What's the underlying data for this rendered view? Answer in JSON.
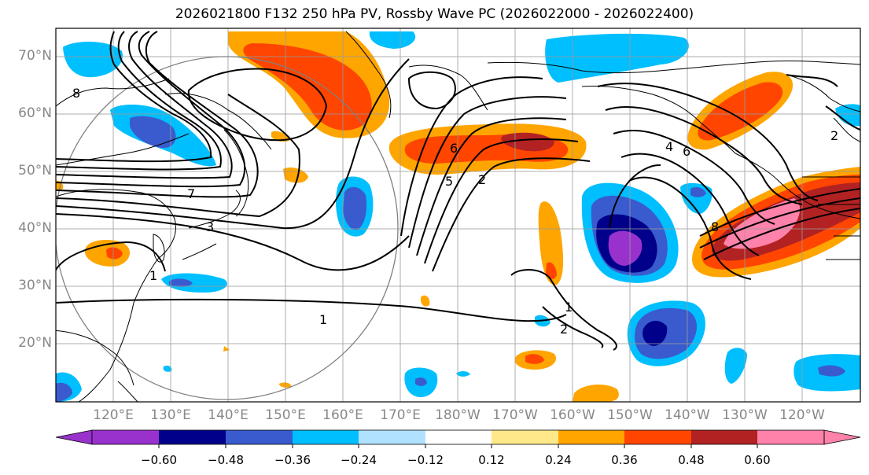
{
  "title": "2026021800 F132 250 hPa PV, Rossby Wave PC (2026022000 - 2026022400)",
  "lat_labels": [
    "70°N",
    "60°N",
    "50°N",
    "40°N",
    "30°N",
    "20°N"
  ],
  "lon_labels": [
    "120°E",
    "130°E",
    "140°E",
    "150°E",
    "160°E",
    "170°E",
    "180°W",
    "170°W",
    "160°W",
    "150°W",
    "140°W",
    "130°W",
    "120°W"
  ],
  "contour_labels": [
    "8",
    "7",
    "3",
    "1",
    "1",
    "6",
    "5",
    "2",
    "1",
    "2",
    "4",
    "6",
    "8",
    "2"
  ],
  "colorbar": {
    "ticks": [
      "−0.60",
      "−0.48",
      "−0.36",
      "−0.24",
      "−0.12",
      "0.12",
      "0.24",
      "0.36",
      "0.48",
      "0.60"
    ],
    "colors": [
      "#9932cc",
      "#00008b",
      "#3a5bcd",
      "#00bfff",
      "#b0e2ff",
      "#ffffff",
      "#ffe88a",
      "#ffa500",
      "#ff4500",
      "#b22222",
      "#ff82ab"
    ]
  }
}
